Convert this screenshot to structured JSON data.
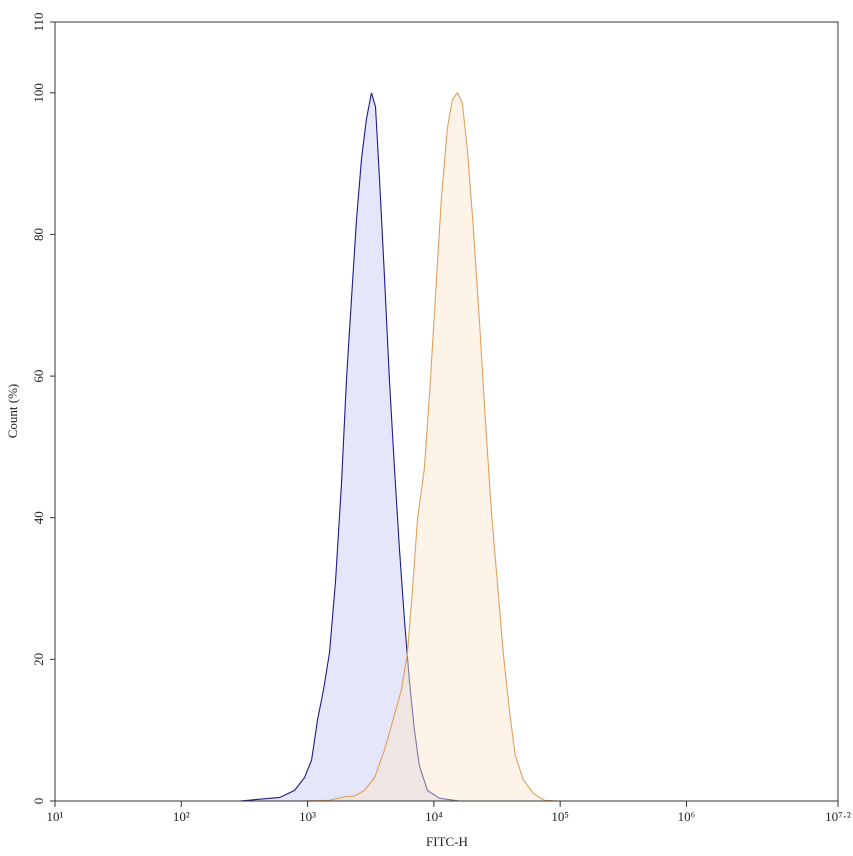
{
  "chart_data": {
    "type": "histogram_overlay",
    "x_label": "FITC-H",
    "y_label": "Count (%)",
    "log_x": true,
    "xlim": [
      10,
      15848931.9
    ],
    "xticks": [
      {
        "value": 10,
        "label": "10¹"
      },
      {
        "value": 100,
        "label": "10²"
      },
      {
        "value": 1000,
        "label": "10³"
      },
      {
        "value": 10000,
        "label": "10⁴"
      },
      {
        "value": 100000,
        "label": "10⁵"
      },
      {
        "value": 1000000,
        "label": "10⁶"
      },
      {
        "value": 15848931.9,
        "label": "10⁷·²"
      }
    ],
    "ylim": [
      0,
      110
    ],
    "yticks": [
      0,
      20,
      40,
      60,
      80,
      100,
      110
    ],
    "series": [
      {
        "color": "#1c1c8a",
        "fill": "#c8c8f5",
        "x": [
          290,
          601,
          789,
          946,
          1076,
          1200,
          1337,
          1493,
          1664,
          1858,
          2032,
          2228,
          2438,
          2673,
          2924,
          3206,
          3451,
          3707,
          4064,
          4446,
          4875,
          5333,
          5848,
          6397,
          7015,
          7674,
          8892,
          11041,
          15922
        ],
        "values": [
          0,
          0.5,
          1.5,
          3.3,
          5.8,
          11.5,
          15.7,
          21,
          31,
          45,
          59.5,
          71,
          82,
          90.7,
          96.3,
          100,
          98,
          88,
          74,
          59.5,
          47,
          35.7,
          25.6,
          17,
          10,
          5,
          1.5,
          0.4,
          0
        ]
      },
      {
        "color": "#e0a060",
        "fill": "#fbe4c8",
        "x": [
          865,
          1493,
          1960,
          2355,
          2825,
          3388,
          4064,
          4875,
          5534,
          6180,
          6761,
          7413,
          8414,
          9204,
          10280,
          11455,
          12790,
          13996,
          15346,
          16788,
          18408,
          20512,
          22909,
          25527,
          28510,
          31769,
          35400,
          39537,
          44055,
          51050,
          61235,
          74817,
          98175
        ],
        "values": [
          0,
          0.1,
          0.6,
          0.7,
          1.5,
          3.3,
          7.2,
          12.2,
          15.7,
          21,
          29.6,
          39.7,
          47,
          57,
          71,
          85,
          95,
          99,
          100,
          98.6,
          92,
          81,
          68,
          54,
          41,
          31,
          21,
          13,
          6.5,
          3,
          1.1,
          0.1,
          0
        ]
      }
    ]
  }
}
